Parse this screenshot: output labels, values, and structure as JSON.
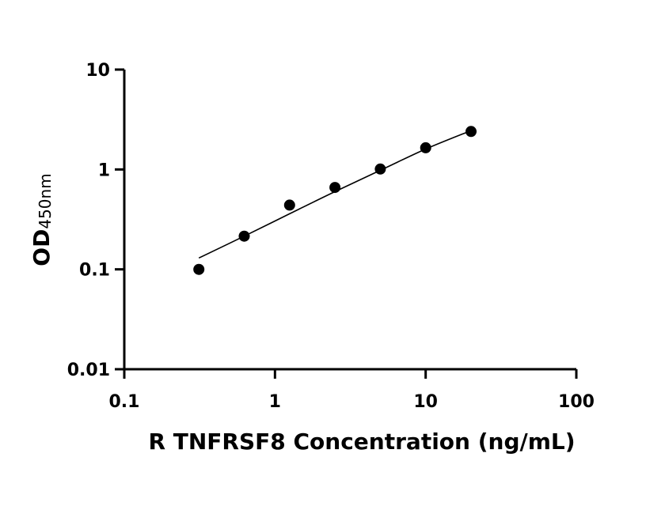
{
  "chart_data": {
    "type": "scatter",
    "xlabel": "R TNFRSF8 Concentration (ng/mL)",
    "ylabel": "OD",
    "ylabel_subscript": "450nm",
    "x_scale": "log",
    "y_scale": "log",
    "xlim": [
      0.1,
      100
    ],
    "ylim": [
      0.01,
      10
    ],
    "x_ticks": [
      {
        "value": 0.1,
        "label": "0.1"
      },
      {
        "value": 1,
        "label": "1"
      },
      {
        "value": 10,
        "label": "10"
      },
      {
        "value": 100,
        "label": "100"
      }
    ],
    "y_ticks": [
      {
        "value": 0.01,
        "label": "0.01"
      },
      {
        "value": 0.1,
        "label": "0.1"
      },
      {
        "value": 1,
        "label": "1"
      },
      {
        "value": 10,
        "label": "10"
      }
    ],
    "grid": false,
    "series": [
      {
        "x": [
          0.3125,
          0.625,
          1.25,
          2.5,
          5,
          10,
          20
        ],
        "y": [
          0.1,
          0.215,
          0.44,
          0.66,
          1.01,
          1.65,
          2.4
        ]
      }
    ],
    "fit_curve": {
      "x": [
        0.3125,
        0.625,
        1.25,
        2.5,
        5,
        10,
        20
      ],
      "y": [
        0.13,
        0.215,
        0.36,
        0.6,
        0.98,
        1.6,
        2.45
      ]
    },
    "colors": {
      "points": "#000000",
      "axes": "#000000"
    }
  }
}
